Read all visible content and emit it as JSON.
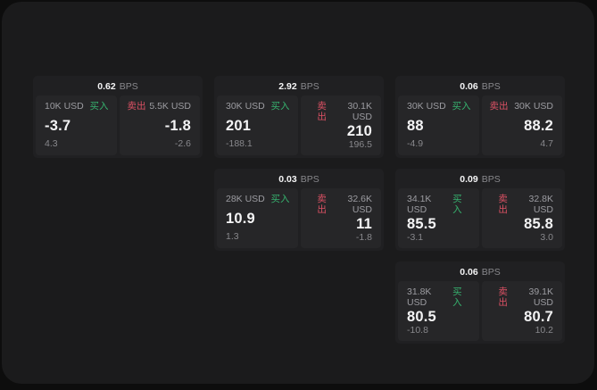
{
  "window": {
    "background": "#0d0d0d",
    "surface": "#1b1b1c"
  },
  "colors": {
    "card": "#202022",
    "tile": "#262628",
    "text_primary": "#f4f4f5",
    "text_secondary": "#9c9ca1",
    "text_muted": "#88888c",
    "buy": "#36b26e",
    "sell": "#dc5164"
  },
  "labels": {
    "bps_unit": "BPS",
    "buy": "买入",
    "sell": "卖出"
  },
  "cards": [
    {
      "row": 1,
      "col": 1,
      "bps": "0.62",
      "buy": {
        "size": "10K USD",
        "price": "-3.7",
        "change": "4.3"
      },
      "sell": {
        "size": "5.5K USD",
        "price": "-1.8",
        "change": "-2.6"
      }
    },
    {
      "row": 1,
      "col": 2,
      "bps": "2.92",
      "buy": {
        "size": "30K USD",
        "price": "201",
        "change": "-188.1"
      },
      "sell": {
        "size": "30.1K USD",
        "price": "210",
        "change": "196.5"
      }
    },
    {
      "row": 1,
      "col": 3,
      "bps": "0.06",
      "buy": {
        "size": "30K USD",
        "price": "88",
        "change": "-4.9"
      },
      "sell": {
        "size": "30K USD",
        "price": "88.2",
        "change": "4.7"
      }
    },
    {
      "row": 2,
      "col": 2,
      "bps": "0.03",
      "buy": {
        "size": "28K USD",
        "price": "10.9",
        "change": "1.3"
      },
      "sell": {
        "size": "32.6K USD",
        "price": "11",
        "change": "-1.8"
      }
    },
    {
      "row": 2,
      "col": 3,
      "bps": "0.09",
      "buy": {
        "size": "34.1K USD",
        "price": "85.5",
        "change": "-3.1"
      },
      "sell": {
        "size": "32.8K USD",
        "price": "85.8",
        "change": "3.0"
      }
    },
    {
      "row": 3,
      "col": 3,
      "bps": "0.06",
      "buy": {
        "size": "31.8K USD",
        "price": "80.5",
        "change": "-10.8"
      },
      "sell": {
        "size": "39.1K USD",
        "price": "80.7",
        "change": "10.2"
      }
    }
  ]
}
